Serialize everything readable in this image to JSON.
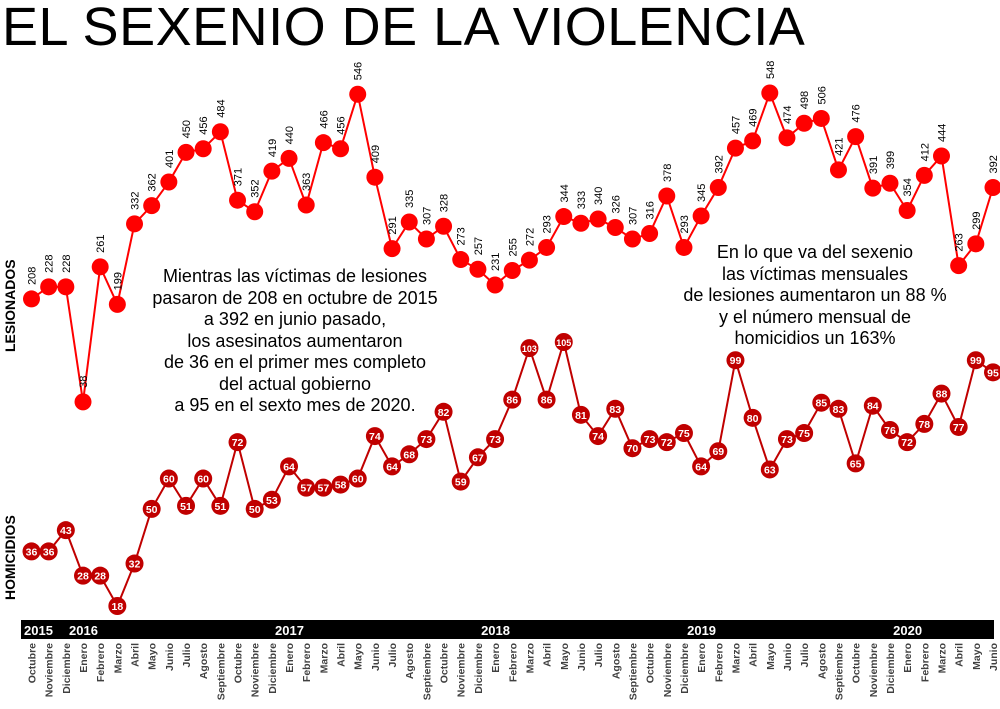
{
  "title": "EL SEXENIO DE LA VIOLENCIA",
  "series_labels": {
    "lesionados": "LESIONADOS",
    "homicidios": "HOMICIDIOS"
  },
  "notes": {
    "left": [
      "Mientras las víctimas de lesiones",
      "pasaron de 208 en octubre de 2015",
      "a 392 en junio pasado,",
      "los asesinatos aumentaron",
      "de 36 en el primer mes completo",
      "del actual gobierno",
      "a 95 en el sexto mes de 2020."
    ],
    "right": [
      "En lo que va del sexenio",
      "las víctimas mensuales",
      "de lesiones aumentaron un 88 %",
      "y el número mensual de",
      "homicidios un 163%"
    ]
  },
  "colors": {
    "lesionados": "#ff0000",
    "homicidios": "#c00000",
    "bar": "#000000",
    "year_text": "#ffffff",
    "month_text": "#404040"
  },
  "chart_data": {
    "type": "line",
    "years": [
      {
        "label": "2015",
        "index": 0
      },
      {
        "label": "2016",
        "index": 3
      },
      {
        "label": "2017",
        "index": 15
      },
      {
        "label": "2018",
        "index": 27
      },
      {
        "label": "2019",
        "index": 39
      },
      {
        "label": "2020",
        "index": 51
      }
    ],
    "categories": [
      "Octubre",
      "Noviembre",
      "Diciembre",
      "Enero",
      "Febrero",
      "Marzo",
      "Abril",
      "Mayo",
      "Junio",
      "Julio",
      "Agosto",
      "Septiembre",
      "Octubre",
      "Noviembre",
      "Diciembre",
      "Enero",
      "Febrero",
      "Marzo",
      "Abril",
      "Mayo",
      "Junio",
      "Julio",
      "Agosto",
      "Septiembre",
      "Octubre",
      "Noviembre",
      "Diciembre",
      "Enero",
      "Febrero",
      "Marzo",
      "Abril",
      "Mayo",
      "Junio",
      "Julio",
      "Agosto",
      "Septiembre",
      "Octubre",
      "Noviembre",
      "Diciembre",
      "Enero",
      "Febrero",
      "Marzo",
      "Abril",
      "Mayo",
      "Junio",
      "Julio",
      "Agosto",
      "Septiembre",
      "Octubre",
      "Noviembre",
      "Diciembre",
      "Enero",
      "Febrero",
      "Marzo",
      "Abril",
      "Mayo",
      "Junio"
    ],
    "series": [
      {
        "name": "LESIONADOS",
        "values": [
          208,
          228,
          228,
          38,
          261,
          199,
          332,
          362,
          401,
          450,
          456,
          484,
          371,
          352,
          419,
          440,
          363,
          466,
          456,
          546,
          409,
          291,
          335,
          307,
          328,
          273,
          257,
          231,
          255,
          272,
          293,
          344,
          333,
          340,
          326,
          307,
          316,
          378,
          293,
          345,
          392,
          457,
          469,
          548,
          474,
          498,
          506,
          421,
          476,
          391,
          399,
          354,
          412,
          444,
          263,
          299,
          392
        ]
      },
      {
        "name": "HOMICIDIOS",
        "values": [
          36,
          36,
          43,
          28,
          28,
          18,
          32,
          50,
          60,
          51,
          60,
          51,
          72,
          50,
          53,
          64,
          57,
          57,
          58,
          60,
          74,
          64,
          68,
          73,
          82,
          59,
          67,
          73,
          86,
          103,
          86,
          105,
          81,
          74,
          83,
          70,
          73,
          72,
          75,
          64,
          69,
          99,
          80,
          63,
          73,
          75,
          85,
          83,
          65,
          84,
          76,
          72,
          78,
          88,
          77,
          99,
          95
        ]
      }
    ]
  }
}
